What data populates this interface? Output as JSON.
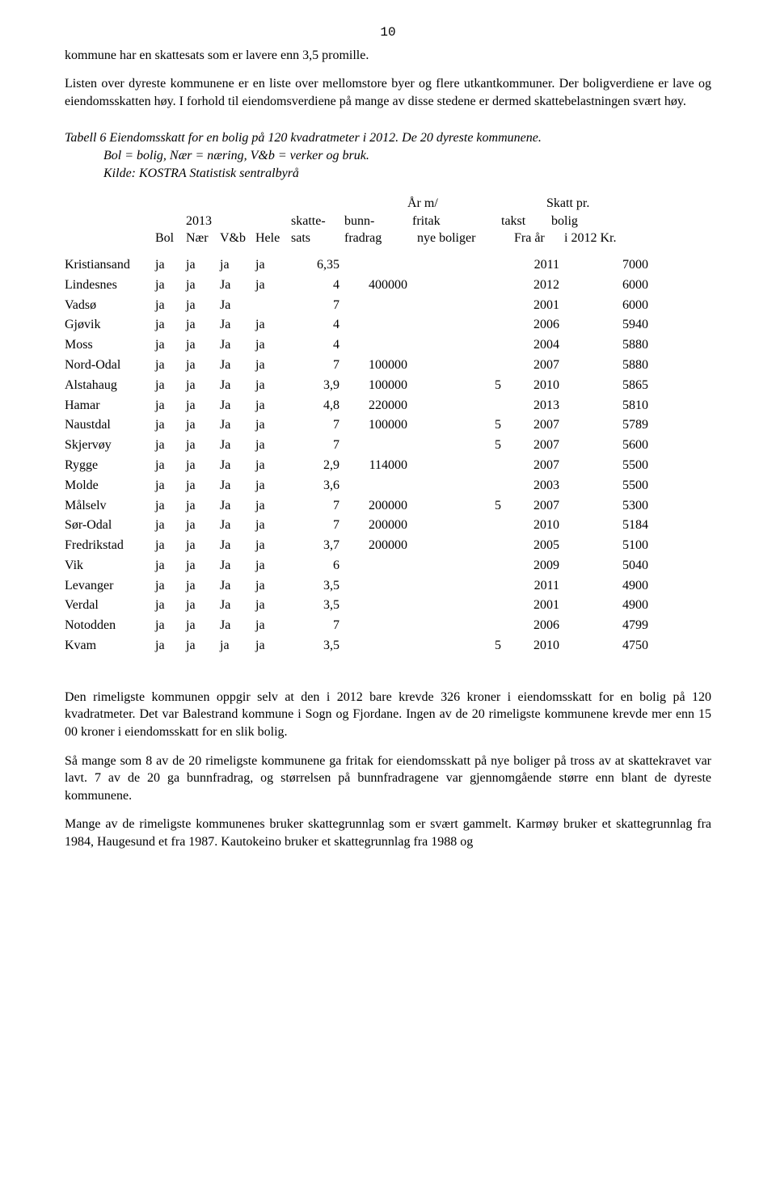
{
  "pageNumber": "10",
  "para1": "kommune har en skattesats som er lavere enn 3,5 promille.",
  "para2": "Listen over dyreste kommunene er en liste over mellomstore byer og flere utkantkommuner. Der boligverdiene er lave og eiendomsskatten høy. I forhold til eiendomsverdiene på mange av disse stedene er dermed skattebelastningen svært høy.",
  "tableCaption1": "Tabell 6 Eiendomsskatt for en bolig på 120 kvadratmeter i 2012. De 20 dyreste kommunene.",
  "tableCaption2": "Bol = bolig, Nær = næring, V&b = verker og bruk.",
  "tableCaption3": "Kilde: KOSTRA Statistisk sentralbyrå",
  "header": {
    "row1": {
      "col_fritak": "År m/",
      "col_skatt": "Skatt pr."
    },
    "row2": {
      "col_2013": "2013",
      "col_sats": "skatte-",
      "col_bunn": "bunn-",
      "col_fritak": "fritak",
      "col_takst": "takst",
      "col_skatt": "bolig"
    },
    "row3": {
      "col_bol": "Bol",
      "col_naer": "Nær",
      "col_vb": "V&b",
      "col_hele": "Hele",
      "col_sats": "sats",
      "col_bunn": "fradrag",
      "col_fritak": "nye boliger",
      "col_takst": "Fra år",
      "col_skatt": "i 2012 Kr."
    }
  },
  "rows": [
    {
      "name": "Kristiansand",
      "bol": "ja",
      "naer": "ja",
      "vb": "ja",
      "hele": "ja",
      "sats": "6,35",
      "bunn": "",
      "fritak": "",
      "takst": "2011",
      "skatt": "7000"
    },
    {
      "name": "Lindesnes",
      "bol": "ja",
      "naer": "ja",
      "vb": "Ja",
      "hele": "ja",
      "sats": "4",
      "bunn": "400000",
      "fritak": "",
      "takst": "2012",
      "skatt": "6000"
    },
    {
      "name": "Vadsø",
      "bol": "ja",
      "naer": "ja",
      "vb": "Ja",
      "hele": "",
      "sats": "7",
      "bunn": "",
      "fritak": "",
      "takst": "2001",
      "skatt": "6000"
    },
    {
      "name": "Gjøvik",
      "bol": "ja",
      "naer": "ja",
      "vb": "Ja",
      "hele": "ja",
      "sats": "4",
      "bunn": "",
      "fritak": "",
      "takst": "2006",
      "skatt": "5940"
    },
    {
      "name": "Moss",
      "bol": "ja",
      "naer": "ja",
      "vb": "Ja",
      "hele": "ja",
      "sats": "4",
      "bunn": "",
      "fritak": "",
      "takst": "2004",
      "skatt": "5880"
    },
    {
      "name": "Nord-Odal",
      "bol": "ja",
      "naer": "ja",
      "vb": "Ja",
      "hele": "ja",
      "sats": "7",
      "bunn": "100000",
      "fritak": "",
      "takst": "2007",
      "skatt": "5880"
    },
    {
      "name": "Alstahaug",
      "bol": "ja",
      "naer": "ja",
      "vb": "Ja",
      "hele": "ja",
      "sats": "3,9",
      "bunn": "100000",
      "fritak": "5",
      "takst": "2010",
      "skatt": "5865"
    },
    {
      "name": "Hamar",
      "bol": "ja",
      "naer": "ja",
      "vb": "Ja",
      "hele": "ja",
      "sats": "4,8",
      "bunn": "220000",
      "fritak": "",
      "takst": "2013",
      "skatt": "5810"
    },
    {
      "name": "Naustdal",
      "bol": "ja",
      "naer": "ja",
      "vb": "Ja",
      "hele": "ja",
      "sats": "7",
      "bunn": "100000",
      "fritak": "5",
      "takst": "2007",
      "skatt": "5789"
    },
    {
      "name": "Skjervøy",
      "bol": "ja",
      "naer": "ja",
      "vb": "Ja",
      "hele": "ja",
      "sats": "7",
      "bunn": "",
      "fritak": "5",
      "takst": "2007",
      "skatt": "5600"
    },
    {
      "name": "Rygge",
      "bol": "ja",
      "naer": "ja",
      "vb": "Ja",
      "hele": "ja",
      "sats": "2,9",
      "bunn": "114000",
      "fritak": "",
      "takst": "2007",
      "skatt": "5500"
    },
    {
      "name": "Molde",
      "bol": "ja",
      "naer": "ja",
      "vb": "Ja",
      "hele": "ja",
      "sats": "3,6",
      "bunn": "",
      "fritak": "",
      "takst": "2003",
      "skatt": "5500"
    },
    {
      "name": "Målselv",
      "bol": "ja",
      "naer": "ja",
      "vb": "Ja",
      "hele": "ja",
      "sats": "7",
      "bunn": "200000",
      "fritak": "5",
      "takst": "2007",
      "skatt": "5300"
    },
    {
      "name": "Sør-Odal",
      "bol": "ja",
      "naer": "ja",
      "vb": "Ja",
      "hele": "ja",
      "sats": "7",
      "bunn": "200000",
      "fritak": "",
      "takst": "2010",
      "skatt": "5184"
    },
    {
      "name": "Fredrikstad",
      "bol": "ja",
      "naer": "ja",
      "vb": "Ja",
      "hele": "ja",
      "sats": "3,7",
      "bunn": "200000",
      "fritak": "",
      "takst": "2005",
      "skatt": "5100"
    },
    {
      "name": "Vik",
      "bol": "ja",
      "naer": "ja",
      "vb": "Ja",
      "hele": "ja",
      "sats": "6",
      "bunn": "",
      "fritak": "",
      "takst": "2009",
      "skatt": "5040"
    },
    {
      "name": "Levanger",
      "bol": "ja",
      "naer": "ja",
      "vb": "Ja",
      "hele": "ja",
      "sats": "3,5",
      "bunn": "",
      "fritak": "",
      "takst": "2011",
      "skatt": "4900"
    },
    {
      "name": "Verdal",
      "bol": "ja",
      "naer": "ja",
      "vb": "Ja",
      "hele": "ja",
      "sats": "3,5",
      "bunn": "",
      "fritak": "",
      "takst": "2001",
      "skatt": "4900"
    },
    {
      "name": "Notodden",
      "bol": "ja",
      "naer": "ja",
      "vb": "Ja",
      "hele": "ja",
      "sats": "7",
      "bunn": "",
      "fritak": "",
      "takst": "2006",
      "skatt": "4799"
    },
    {
      "name": "Kvam",
      "bol": "ja",
      "naer": "ja",
      "vb": "ja",
      "hele": "ja",
      "sats": "3,5",
      "bunn": "",
      "fritak": "5",
      "takst": "2010",
      "skatt": "4750"
    }
  ],
  "para3": "Den rimeligste kommunen oppgir selv at den i 2012 bare krevde 326 kroner i eiendomsskatt for en bolig på 120 kvadratmeter. Det var Balestrand kommune i Sogn og Fjordane. Ingen av de 20 rimeligste kommunene krevde mer enn 15 00 kroner i eiendomsskatt for en slik bolig.",
  "para4": "Så mange som 8 av de 20 rimeligste kommunene ga fritak for eiendomsskatt på nye boliger på tross av at skattekravet var lavt. 7 av de 20 ga bunnfradrag, og størrelsen på bunnfradragene var gjennomgående større enn blant de dyreste kommunene.",
  "para5": "Mange av de rimeligste kommunenes bruker skattegrunnlag som er svært gammelt. Karmøy bruker et skattegrunnlag fra 1984, Haugesund et fra 1987. Kautokeino bruker et skattegrunnlag fra 1988 og"
}
